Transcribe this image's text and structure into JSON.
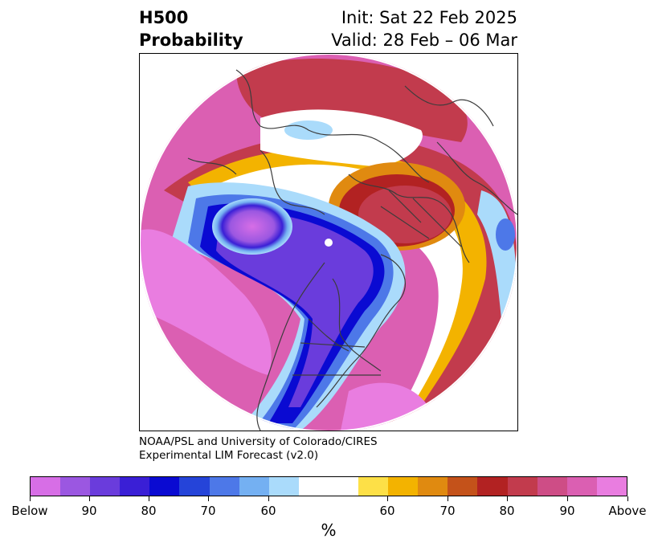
{
  "title": {
    "left_line1": "H500",
    "left_line2": "Probability",
    "right_line1": "Init: Sat 22 Feb 2025",
    "right_line2": "Valid: 28 Feb – 06 Mar"
  },
  "credit": {
    "line1": "NOAA/PSL and University of Colorado/CIRES",
    "line2": "Experimental LIM Forecast (v2.0)"
  },
  "map": {
    "projection": "north-polar-stereographic",
    "basemap": "coastlines and political borders, dark gray",
    "field": "probability of 500-hPa height anomaly, below (cool) vs above (warm)"
  },
  "colorbar": {
    "unit_label": "%",
    "colors": [
      "#d76ee6",
      "#9b57e1",
      "#6a3cdc",
      "#3a1fd6",
      "#0a0ad2",
      "#2544d9",
      "#4d78e8",
      "#74b0f2",
      "#aadbfb",
      "#ffffff",
      "#fde047",
      "#f3b300",
      "#e08a10",
      "#c4521a",
      "#b22222",
      "#c23b4d",
      "#ce4d86",
      "#db5fb2",
      "#e97de0"
    ],
    "tick_labels": [
      "Below",
      "90",
      "80",
      "70",
      "60",
      "60",
      "70",
      "80",
      "90",
      "Above"
    ]
  }
}
